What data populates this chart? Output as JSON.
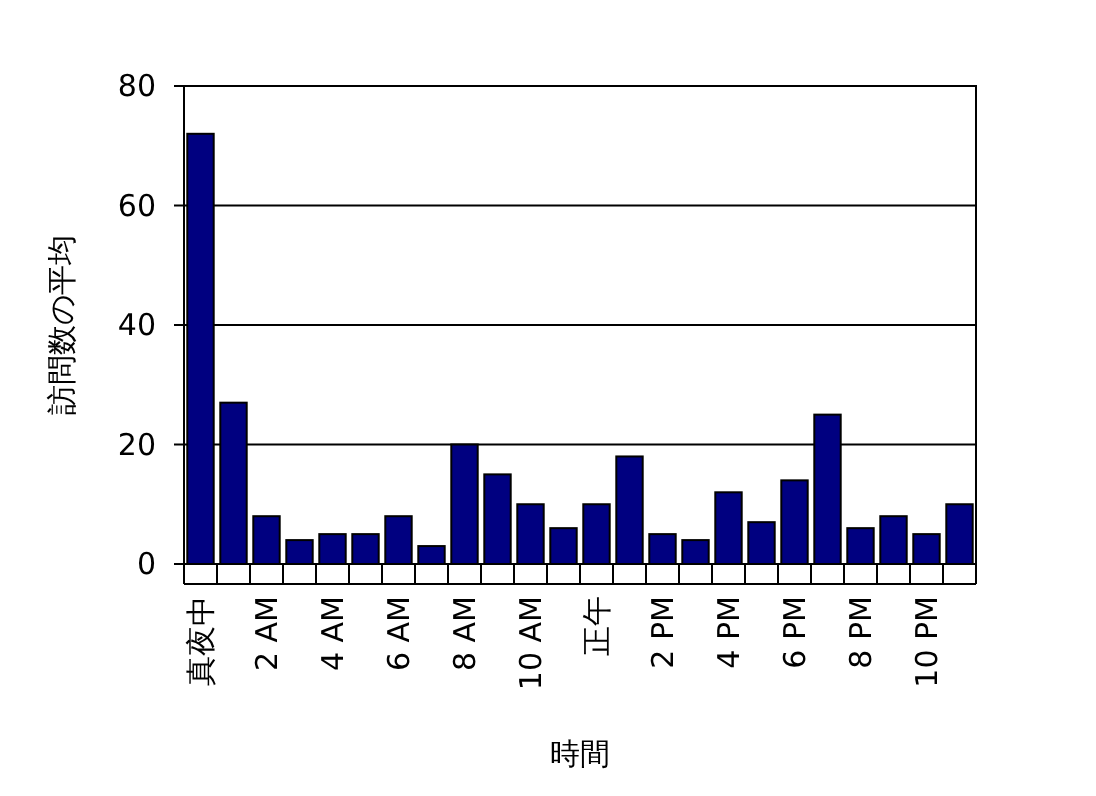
{
  "chart_data": {
    "type": "bar",
    "xlabel": "時間",
    "ylabel": "訪問数の平均",
    "categories": [
      "真夜中",
      null,
      "2 AM",
      null,
      "4 AM",
      null,
      "6 AM",
      null,
      "8 AM",
      null,
      "10 AM",
      null,
      "正午",
      null,
      "2 PM",
      null,
      "4 PM",
      null,
      "6 PM",
      null,
      "8 PM",
      null,
      "10 PM",
      null
    ],
    "values": [
      72,
      27,
      8,
      4,
      5,
      5,
      8,
      3,
      20,
      15,
      10,
      6,
      10,
      18,
      5,
      4,
      12,
      7,
      14,
      25,
      6,
      8,
      5,
      10
    ],
    "color": "#000080",
    "ylim": [
      0,
      80
    ],
    "yticks": [
      0,
      20,
      40,
      60,
      80
    ],
    "grid": "y"
  }
}
